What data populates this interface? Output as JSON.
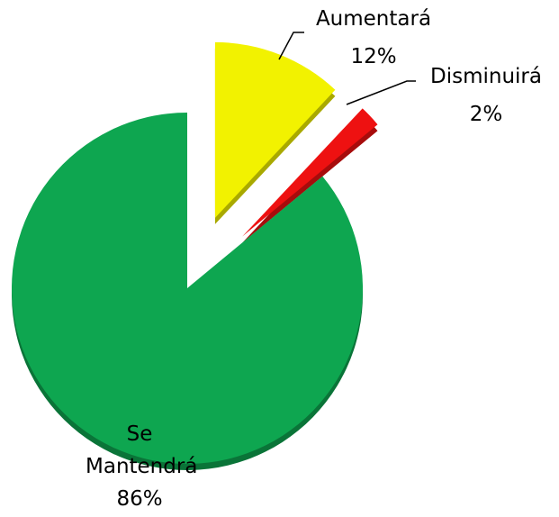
{
  "chart_data": {
    "type": "pie",
    "categories": [
      "Aumentará",
      "Disminuirá",
      "Se Mantendrá"
    ],
    "values": [
      12,
      2,
      86
    ],
    "value_labels": [
      "12%",
      "2%",
      "86%"
    ],
    "colors": [
      "#f2f200",
      "#ee1111",
      "#0ea650"
    ]
  }
}
